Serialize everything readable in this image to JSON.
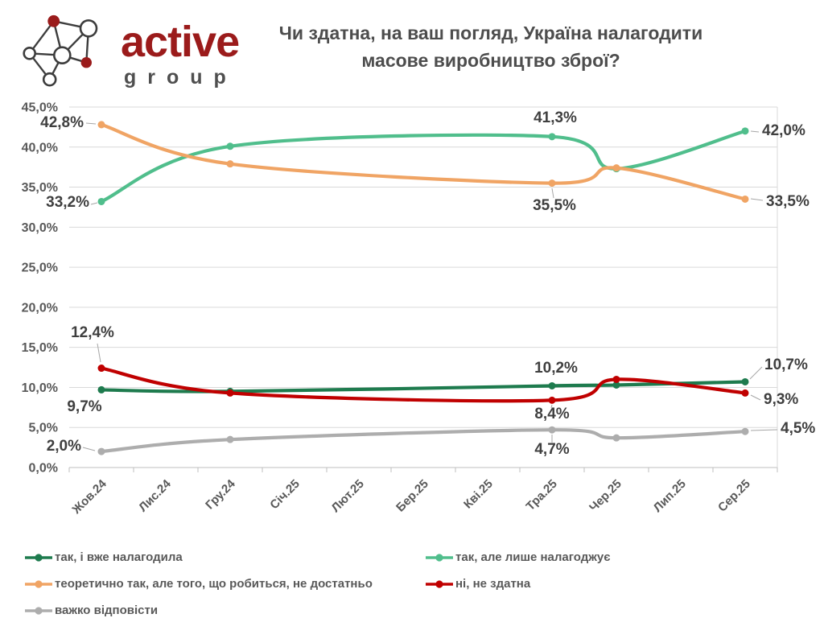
{
  "header": {
    "logo": {
      "brand": "active",
      "sub": "group"
    },
    "title_line1": "Чи здатна, на ваш погляд, Україна налагодити",
    "title_line2": "масове виробництво зброї?"
  },
  "chart_data": {
    "type": "line",
    "title": "Чи здатна, на ваш погляд, Україна налагодити масове виробництво зброї?",
    "categories": [
      "Жов.24",
      "Лис.24",
      "Гру.24",
      "Січ.25",
      "Лют.25",
      "Бер.25",
      "Кві.25",
      "Тра.25",
      "Чер.25",
      "Лип.25",
      "Сер.25"
    ],
    "wave_category_indices": [
      0,
      2,
      7,
      8,
      10
    ],
    "y_axis": {
      "min": 0,
      "max": 45,
      "step": 5,
      "ticks": [
        "0,0%",
        "5,0%",
        "10,0%",
        "15,0%",
        "20,0%",
        "25,0%",
        "30,0%",
        "35,0%",
        "40,0%",
        "45,0%"
      ]
    },
    "grid": true,
    "legend_position": "bottom",
    "line_style": "smooth",
    "series": [
      {
        "name": "так, і вже налагодила",
        "color": "#1e7b4e",
        "values": [
          9.7,
          9.5,
          10.2,
          10.3,
          10.7
        ]
      },
      {
        "name": "так, але лише налагоджує",
        "color": "#50be8c",
        "values": [
          33.2,
          40.1,
          41.3,
          37.3,
          42.0
        ]
      },
      {
        "name": "теоретично так, але того, що робиться, не достатньо",
        "color": "#f0a464",
        "values": [
          42.8,
          37.9,
          35.5,
          37.4,
          33.5
        ]
      },
      {
        "name": "ні, не здатна",
        "color": "#c00000",
        "values": [
          12.4,
          9.3,
          8.4,
          11.0,
          9.3
        ]
      },
      {
        "name": "важко відповісти",
        "color": "#adadad",
        "values": [
          2.0,
          3.5,
          4.7,
          3.7,
          4.5
        ]
      }
    ],
    "data_labels": [
      {
        "series": 2,
        "wave": 0,
        "text": "42,8%"
      },
      {
        "series": 1,
        "wave": 0,
        "text": "33,2%"
      },
      {
        "series": 3,
        "wave": 0,
        "text": "12,4%"
      },
      {
        "series": 0,
        "wave": 0,
        "text": "9,7%"
      },
      {
        "series": 4,
        "wave": 0,
        "text": "2,0%"
      },
      {
        "series": 1,
        "wave": 2,
        "text": "41,3%"
      },
      {
        "series": 2,
        "wave": 2,
        "text": "35,5%"
      },
      {
        "series": 0,
        "wave": 2,
        "text": "10,2%"
      },
      {
        "series": 3,
        "wave": 2,
        "text": "8,4%"
      },
      {
        "series": 4,
        "wave": 2,
        "text": "4,7%"
      },
      {
        "series": 1,
        "wave": 4,
        "text": "42,0%"
      },
      {
        "series": 2,
        "wave": 4,
        "text": "33,5%"
      },
      {
        "series": 0,
        "wave": 4,
        "text": "10,7%"
      },
      {
        "series": 3,
        "wave": 4,
        "text": "9,3%"
      },
      {
        "series": 4,
        "wave": 4,
        "text": "4,5%"
      }
    ]
  },
  "legend": {
    "order": [
      0,
      2,
      4,
      1,
      3
    ]
  }
}
